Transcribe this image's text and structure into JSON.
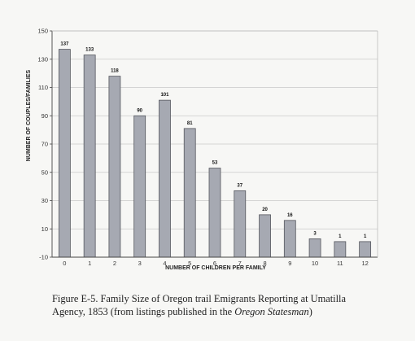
{
  "chart_data": {
    "type": "bar",
    "categories": [
      "0",
      "1",
      "2",
      "3",
      "4",
      "5",
      "6",
      "7",
      "8",
      "9",
      "10",
      "11",
      "12"
    ],
    "values": [
      137,
      133,
      118,
      90,
      101,
      81,
      53,
      37,
      20,
      16,
      3,
      1,
      1
    ],
    "xlabel": "NUMBER OF CHILDREN PER FAMILY",
    "ylabel": "NUMBER OF COUPLES/FAMILIES",
    "ylim": [
      -10,
      150
    ],
    "yticks": [
      -10,
      10,
      30,
      50,
      70,
      90,
      110,
      130,
      150
    ],
    "grid": true,
    "bar_color": "#a6a9b2"
  },
  "caption": {
    "line1": "Figure E-5.  Family Size of Oregon trail Emigrants Reporting at Umatilla",
    "line2_pre": "Agency, 1853 (from listings published in the ",
    "line2_italic": "Oregon Statesman",
    "line2_post": ")"
  }
}
